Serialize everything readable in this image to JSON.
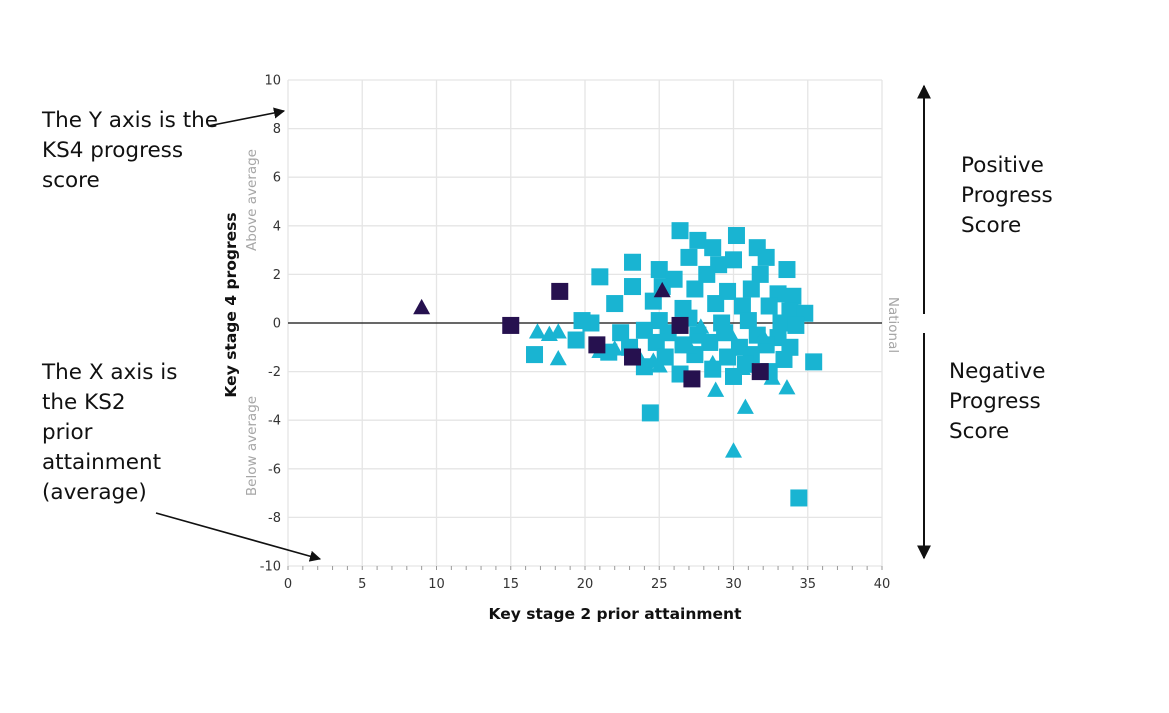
{
  "annotations": {
    "y_axis_note": "The Y axis is the KS4 progress score",
    "x_axis_note": "The X axis is the KS2 prior attainment (average)",
    "positive_note": "Positive Progress Score",
    "negative_note": "Negative Progress Score"
  },
  "colors": {
    "light_points": "#19b4d2",
    "dark_points": "#26114f",
    "grid": "#e5e5e5",
    "baseline": "#111111",
    "band_label": "#a6a6a6"
  },
  "chart_data": {
    "type": "scatter",
    "title": "",
    "xlabel": "Key stage 2 prior attainment",
    "ylabel": "Key stage 4 progress",
    "xlim": [
      0,
      40
    ],
    "ylim": [
      -10,
      10
    ],
    "xticks": [
      0,
      5,
      10,
      15,
      20,
      25,
      30,
      35,
      40
    ],
    "yticks": [
      -10,
      -8,
      -6,
      -4,
      -2,
      0,
      2,
      4,
      6,
      8,
      10
    ],
    "baseline_y": 0,
    "baseline_label": "National",
    "above_label": "Above average",
    "below_label": "Below average",
    "grid": true,
    "legend": "none",
    "series": [
      {
        "marker": "square",
        "color": "#19b4d2",
        "points": [
          [
            26.4,
            3.8
          ],
          [
            27.6,
            3.4
          ],
          [
            30.2,
            3.6
          ],
          [
            28.6,
            3.1
          ],
          [
            31.6,
            3.1
          ],
          [
            32.2,
            2.7
          ],
          [
            33.6,
            2.2
          ],
          [
            27.0,
            2.7
          ],
          [
            29.0,
            2.4
          ],
          [
            30.0,
            2.6
          ],
          [
            28.2,
            2.0
          ],
          [
            31.8,
            2.0
          ],
          [
            25.0,
            2.2
          ],
          [
            26.0,
            1.8
          ],
          [
            23.2,
            2.5
          ],
          [
            21.0,
            1.9
          ],
          [
            23.2,
            1.5
          ],
          [
            25.2,
            1.5
          ],
          [
            27.4,
            1.4
          ],
          [
            29.6,
            1.3
          ],
          [
            31.2,
            1.4
          ],
          [
            33.0,
            1.2
          ],
          [
            34.0,
            1.1
          ],
          [
            22.0,
            0.8
          ],
          [
            24.6,
            0.9
          ],
          [
            26.6,
            0.6
          ],
          [
            28.8,
            0.8
          ],
          [
            30.6,
            0.7
          ],
          [
            32.4,
            0.7
          ],
          [
            33.8,
            0.5
          ],
          [
            34.8,
            0.4
          ],
          [
            20.4,
            0.0
          ],
          [
            19.8,
            0.1
          ],
          [
            25.0,
            0.1
          ],
          [
            27.0,
            0.2
          ],
          [
            29.2,
            0.0
          ],
          [
            31.0,
            0.1
          ],
          [
            33.2,
            0.0
          ],
          [
            34.2,
            -0.1
          ],
          [
            22.4,
            -0.4
          ],
          [
            24.0,
            -0.3
          ],
          [
            25.6,
            -0.4
          ],
          [
            27.6,
            -0.5
          ],
          [
            29.4,
            -0.4
          ],
          [
            31.6,
            -0.5
          ],
          [
            33.0,
            -0.6
          ],
          [
            19.4,
            -0.7
          ],
          [
            23.0,
            -1.0
          ],
          [
            24.8,
            -0.8
          ],
          [
            26.6,
            -0.9
          ],
          [
            28.4,
            -0.8
          ],
          [
            30.4,
            -1.0
          ],
          [
            32.2,
            -0.9
          ],
          [
            33.8,
            -1.0
          ],
          [
            16.6,
            -1.3
          ],
          [
            21.6,
            -1.2
          ],
          [
            25.4,
            -1.4
          ],
          [
            27.4,
            -1.3
          ],
          [
            29.6,
            -1.4
          ],
          [
            31.2,
            -1.3
          ],
          [
            33.4,
            -1.5
          ],
          [
            35.4,
            -1.6
          ],
          [
            24.0,
            -1.8
          ],
          [
            26.4,
            -2.1
          ],
          [
            28.6,
            -1.9
          ],
          [
            30.0,
            -2.2
          ],
          [
            32.4,
            -2.0
          ],
          [
            30.8,
            -1.7
          ],
          [
            24.4,
            -3.7
          ],
          [
            34.4,
            -7.2
          ]
        ]
      },
      {
        "marker": "triangle",
        "color": "#19b4d2",
        "points": [
          [
            16.8,
            -0.4
          ],
          [
            17.6,
            -0.5
          ],
          [
            18.2,
            -0.4
          ],
          [
            18.2,
            -1.5
          ],
          [
            21.0,
            -1.2
          ],
          [
            22.0,
            -1.1
          ],
          [
            23.6,
            -1.4
          ],
          [
            24.6,
            -1.6
          ],
          [
            25.0,
            -1.8
          ],
          [
            27.0,
            -1.0
          ],
          [
            27.8,
            -0.2
          ],
          [
            28.6,
            -1.7
          ],
          [
            28.8,
            -2.8
          ],
          [
            30.6,
            -1.9
          ],
          [
            32.6,
            -2.3
          ],
          [
            33.6,
            -2.7
          ],
          [
            30.8,
            -3.5
          ],
          [
            30.0,
            -5.3
          ],
          [
            29.8,
            -0.5
          ],
          [
            32.0,
            -0.6
          ]
        ]
      },
      {
        "marker": "square",
        "color": "#26114f",
        "points": [
          [
            18.3,
            1.3
          ],
          [
            15.0,
            -0.1
          ],
          [
            20.8,
            -0.9
          ],
          [
            23.2,
            -1.4
          ],
          [
            26.4,
            -0.1
          ],
          [
            27.2,
            -2.3
          ],
          [
            31.8,
            -2.0
          ]
        ]
      },
      {
        "marker": "triangle",
        "color": "#26114f",
        "points": [
          [
            9.0,
            0.6
          ],
          [
            25.2,
            1.3
          ]
        ]
      }
    ]
  }
}
